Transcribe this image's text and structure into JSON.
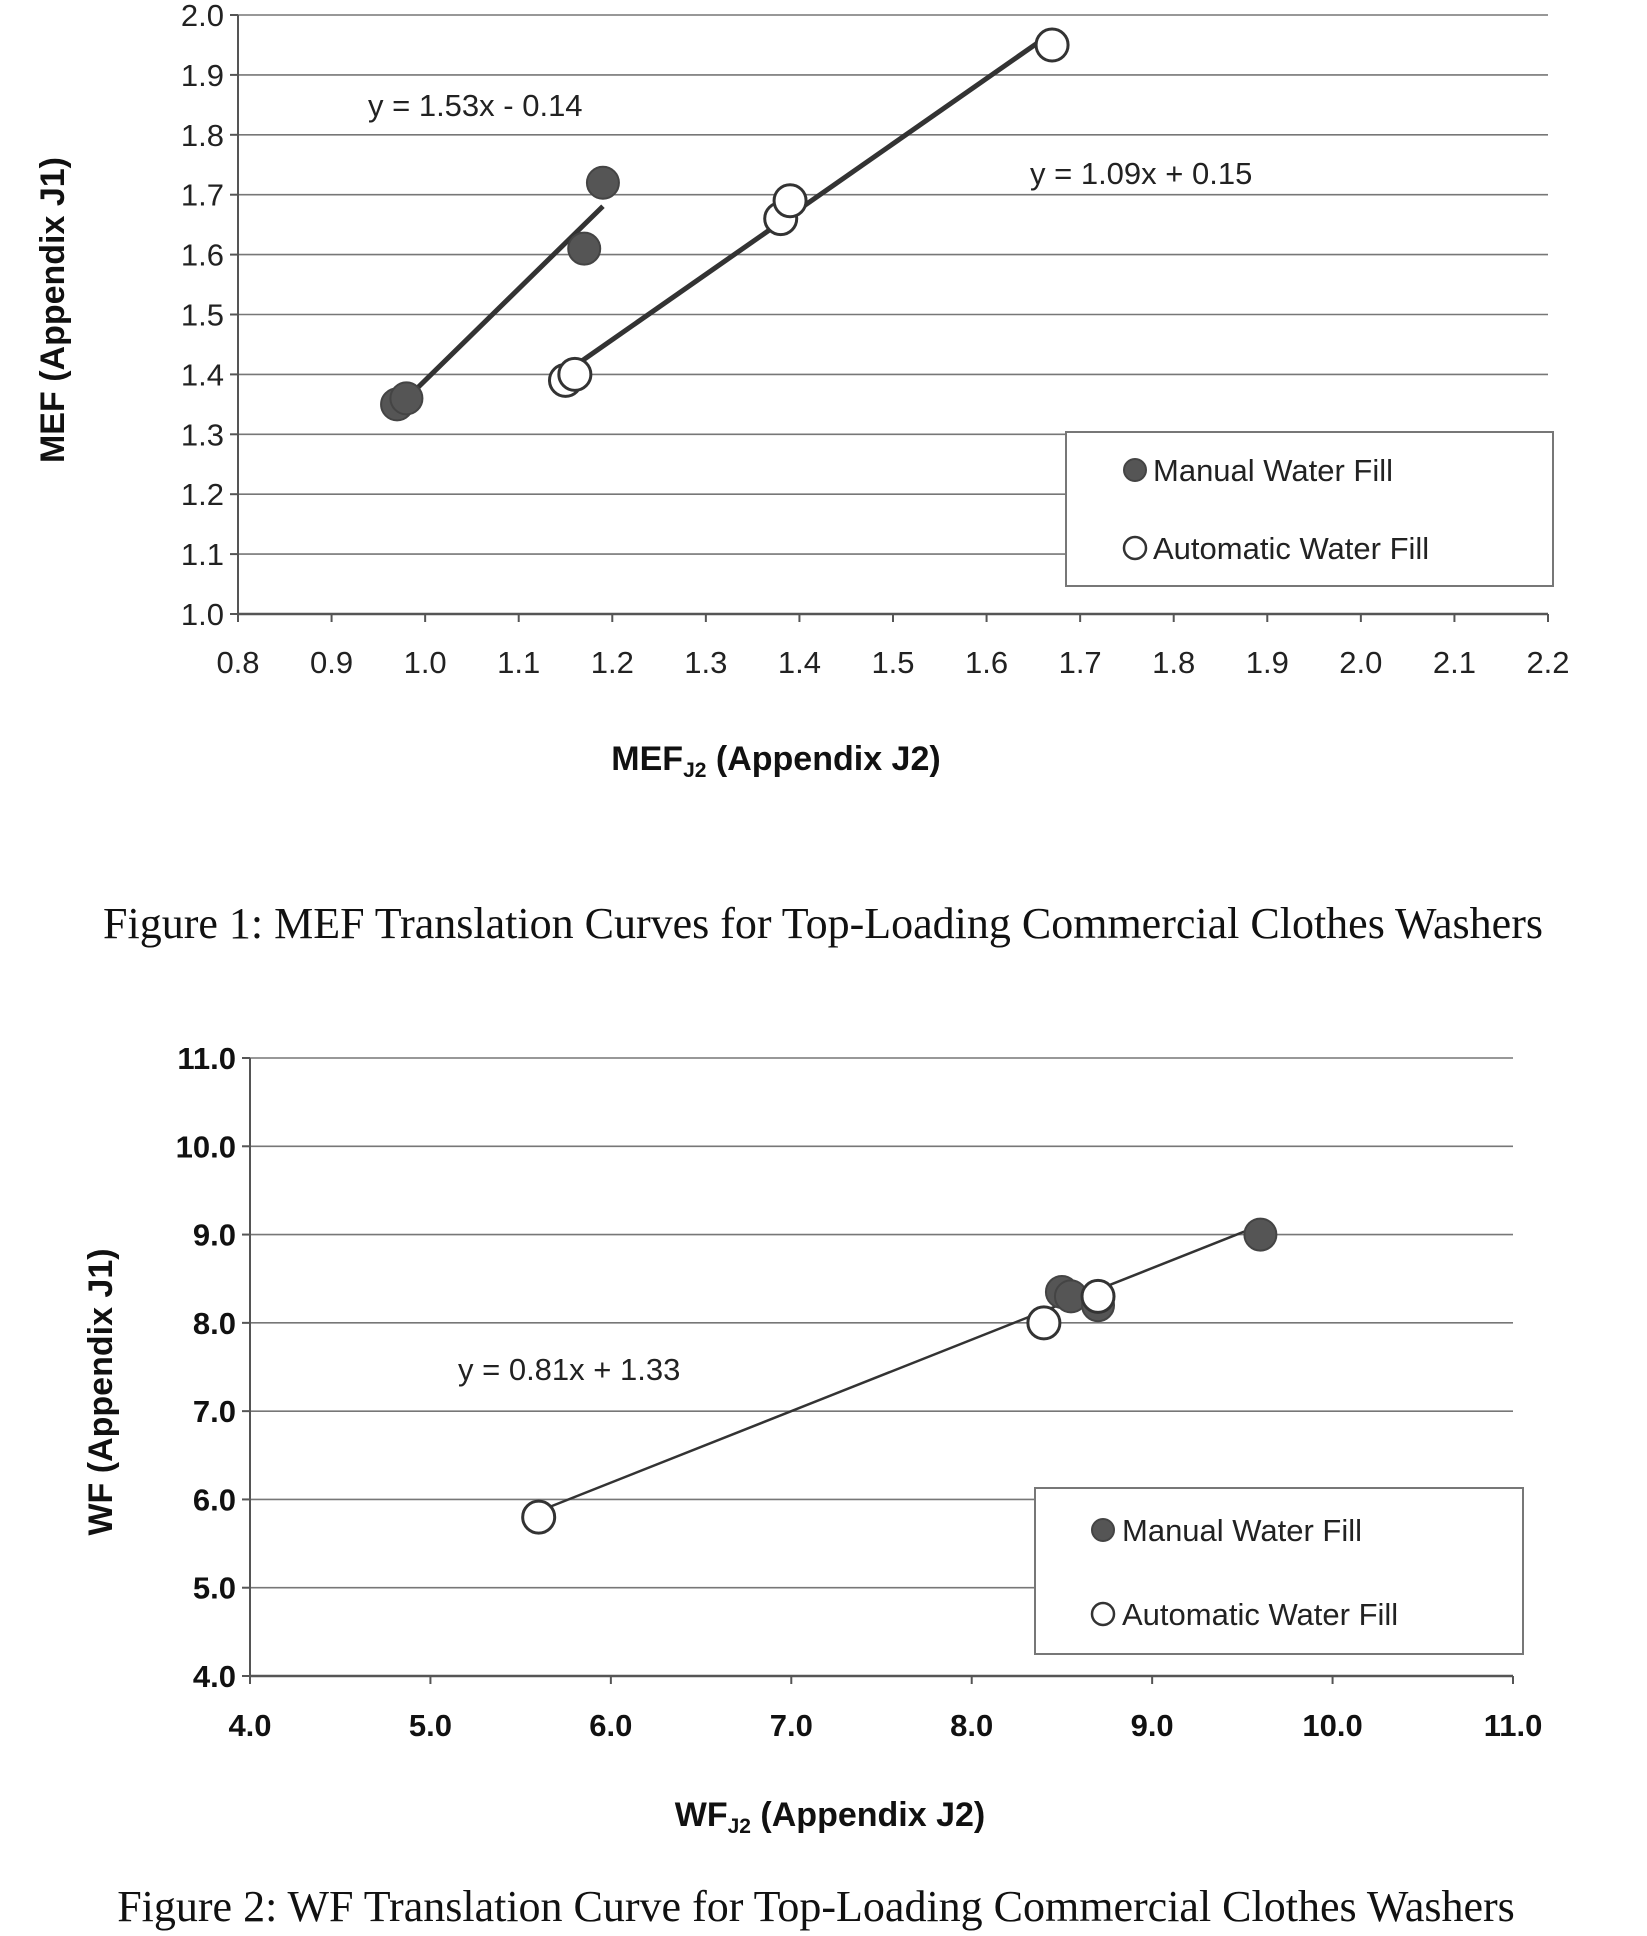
{
  "chart_data": [
    {
      "type": "scatter",
      "caption": "Figure 1: MEF Translation Curves for Top-Loading Commercial Clothes Washers",
      "xlabel_main": "MEF",
      "xlabel_sub": "J2",
      "xlabel_rest": " (Appendix J2)",
      "ylabel": "MEF  (Appendix J1)",
      "xlim": [
        0.8,
        2.2
      ],
      "ylim": [
        1.0,
        2.0
      ],
      "x_ticks": [
        "0.8",
        "0.9",
        "1.0",
        "1.1",
        "1.2",
        "1.3",
        "1.4",
        "1.5",
        "1.6",
        "1.7",
        "1.8",
        "1.9",
        "2.0",
        "2.1",
        "2.2"
      ],
      "y_ticks": [
        "1.0",
        "1.1",
        "1.2",
        "1.3",
        "1.4",
        "1.5",
        "1.6",
        "1.7",
        "1.8",
        "1.9",
        "2.0"
      ],
      "grid": "horizontal",
      "legend_position": "bottom-right",
      "series": [
        {
          "name": "Manual Water Fill",
          "marker": "filled",
          "points": [
            [
              0.97,
              1.35
            ],
            [
              0.98,
              1.36
            ],
            [
              1.17,
              1.61
            ],
            [
              1.19,
              1.72
            ]
          ],
          "trendline": {
            "x": [
              0.97,
              1.19
            ],
            "equation": "y = 1.53x - 0.14"
          }
        },
        {
          "name": "Automatic Water Fill",
          "marker": "open",
          "points": [
            [
              1.15,
              1.39
            ],
            [
              1.16,
              1.4
            ],
            [
              1.38,
              1.66
            ],
            [
              1.39,
              1.69
            ],
            [
              1.67,
              1.95
            ]
          ],
          "trendline": {
            "x": [
              1.15,
              1.67
            ],
            "equation": "y = 1.09x + 0.15"
          }
        }
      ]
    },
    {
      "type": "scatter",
      "caption": "Figure 2: WF Translation Curve for Top-Loading Commercial Clothes Washers",
      "xlabel_main": "WF",
      "xlabel_sub": "J2",
      "xlabel_rest": " (Appendix J2)",
      "ylabel": "WF (Appendix J1)",
      "xlim": [
        4.0,
        11.0
      ],
      "ylim": [
        4.0,
        11.0
      ],
      "x_ticks": [
        "4.0",
        "5.0",
        "6.0",
        "7.0",
        "8.0",
        "9.0",
        "10.0",
        "11.0"
      ],
      "y_ticks": [
        "4.0",
        "5.0",
        "6.0",
        "7.0",
        "8.0",
        "9.0",
        "10.0",
        "11.0"
      ],
      "grid": "horizontal",
      "legend_position": "bottom-right",
      "series": [
        {
          "name": "Manual Water Fill",
          "marker": "filled",
          "points": [
            [
              8.5,
              8.35
            ],
            [
              8.55,
              8.3
            ],
            [
              8.7,
              8.2
            ],
            [
              9.6,
              9.0
            ]
          ]
        },
        {
          "name": "Automatic Water Fill",
          "marker": "open",
          "points": [
            [
              5.6,
              5.8
            ],
            [
              8.4,
              8.0
            ],
            [
              8.7,
              8.3
            ]
          ]
        }
      ],
      "trendline": {
        "x": [
          5.6,
          9.6
        ],
        "equation": "y = 0.81x + 1.33"
      }
    }
  ]
}
